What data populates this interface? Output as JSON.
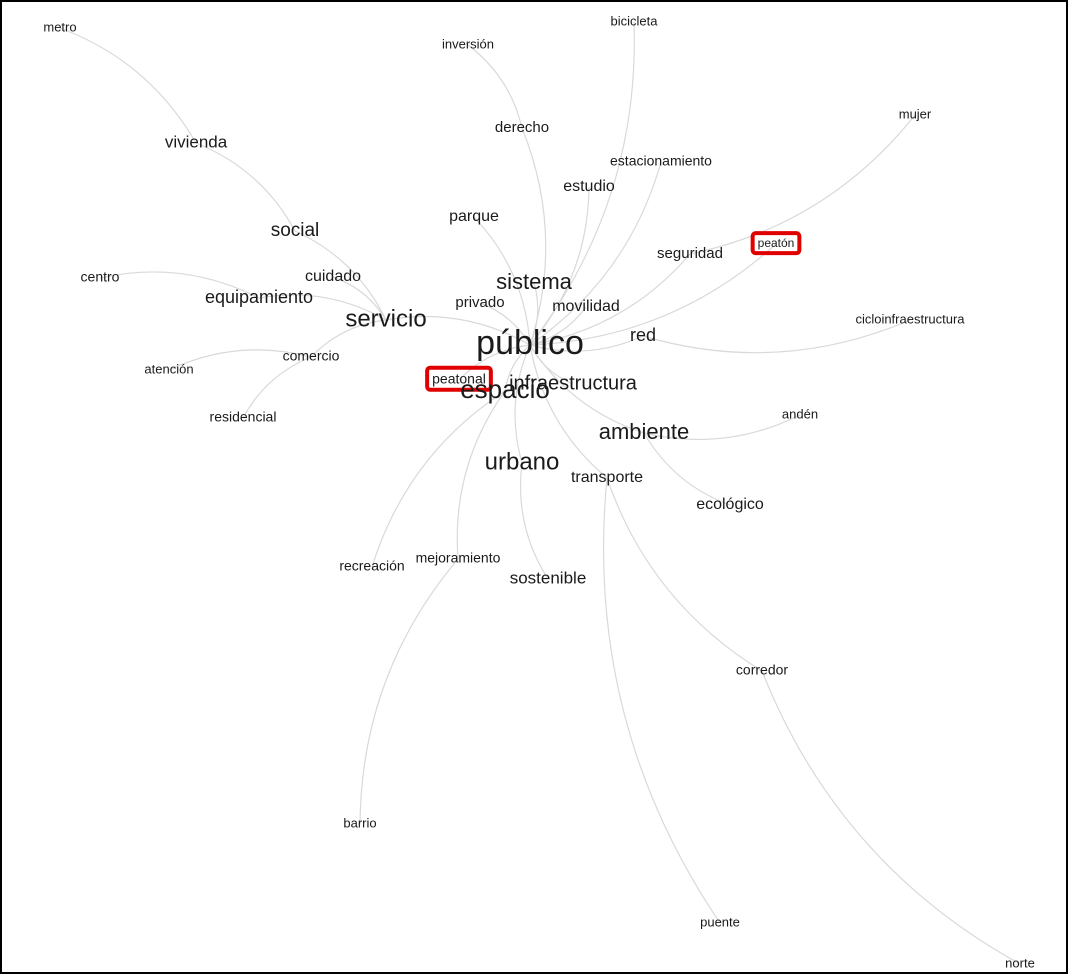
{
  "nodes": [
    {
      "label": "metro"
    },
    {
      "label": "inversión"
    },
    {
      "label": "bicicleta"
    },
    {
      "label": "mujer"
    },
    {
      "label": "vivienda"
    },
    {
      "label": "derecho"
    },
    {
      "label": "estacionamiento"
    },
    {
      "label": "estudio"
    },
    {
      "label": "parque"
    },
    {
      "label": "social"
    },
    {
      "label": "seguridad"
    },
    {
      "label": "peatón"
    },
    {
      "label": "centro"
    },
    {
      "label": "cuidado"
    },
    {
      "label": "sistema"
    },
    {
      "label": "equipamiento"
    },
    {
      "label": "privado"
    },
    {
      "label": "movilidad"
    },
    {
      "label": "servicio"
    },
    {
      "label": "cicloinfraestructura"
    },
    {
      "label": "red"
    },
    {
      "label": "público"
    },
    {
      "label": "comercio"
    },
    {
      "label": "atención"
    },
    {
      "label": "peatonal"
    },
    {
      "label": "infraestructura"
    },
    {
      "label": "espacio"
    },
    {
      "label": "residencial"
    },
    {
      "label": "andén"
    },
    {
      "label": "ambiente"
    },
    {
      "label": "urbano"
    },
    {
      "label": "transporte"
    },
    {
      "label": "ecológico"
    },
    {
      "label": "recreación"
    },
    {
      "label": "mejoramiento"
    },
    {
      "label": "sostenible"
    },
    {
      "label": "corredor"
    },
    {
      "label": "barrio"
    },
    {
      "label": "puente"
    },
    {
      "label": "norte"
    }
  ]
}
